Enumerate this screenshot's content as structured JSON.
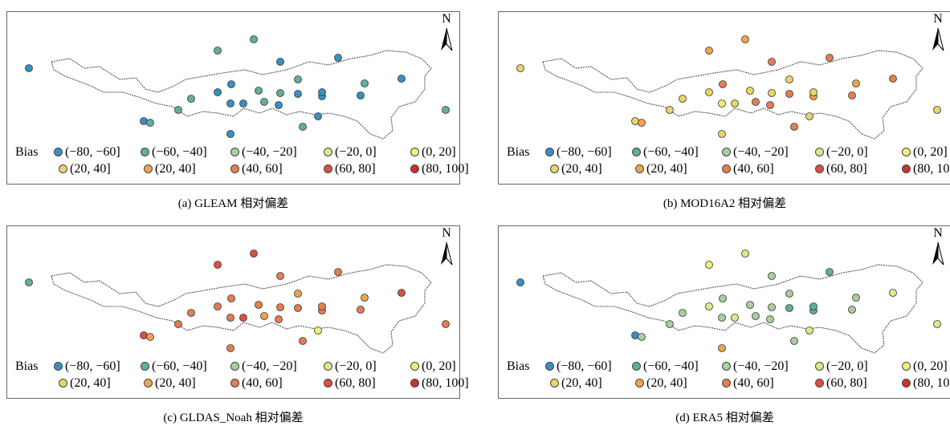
{
  "colors": {
    "(-80,-60]": "#3a8fc4",
    "(-60,-40]": "#63ad9e",
    "(-40,-20]": "#a9cf9a",
    "(-20,0]": "#dce98a",
    "(0,20]": "#f1ee7a",
    "(20,40]a": "#e9d46a",
    "(20,40]b": "#efa350",
    "(40,60]": "#e57d4f",
    "(60,80]": "#d95040",
    "(80,100]": "#c8322a"
  },
  "legend": {
    "title": "Bias",
    "row1": [
      {
        "label": "(−80, −60]",
        "color_key": "(-80,-60]"
      },
      {
        "label": "(−60, −40]",
        "color_key": "(-60,-40]"
      },
      {
        "label": "(−40, −20]",
        "color_key": "(-40,-20]"
      },
      {
        "label": "(−20, 0]",
        "color_key": "(-20,0]"
      },
      {
        "label": "(0, 20]",
        "color_key": "(0,20]"
      }
    ],
    "row2": [
      {
        "label": "(20, 40]",
        "color_key": "(20,40]a"
      },
      {
        "label": "(20, 40]",
        "color_key": "(20,40]b"
      },
      {
        "label": "(40, 60]",
        "color_key": "(40,60]"
      },
      {
        "label": "(60, 80]",
        "color_key": "(60,80]"
      },
      {
        "label": "(80, 100]",
        "color_key": "(80,100]"
      }
    ]
  },
  "north_label": "N",
  "panels": [
    {
      "caption": "(a) GLEAM 相对偏差",
      "stations": [
        "(-80,-60]",
        "(-60,-40]",
        "(-60,-40]",
        "(-80,-60]",
        "(-80,-60]",
        "(-80,-60]",
        "(-60,-40]",
        "(-80,-60]",
        "(-60,-40]",
        "(-60,-40]",
        "(-80,-60]",
        "(-80,-60]",
        "(-80,-60]",
        "(-80,-60]",
        "(-60,-40]",
        "(-60,-40]",
        "(-60,-40]",
        "(-80,-60]",
        "(-60,-40]",
        "(-80,-60]",
        "(-60,-40]",
        "(-80,-60]",
        "(-80,-60]",
        "(-60,-40]",
        "(-80,-60]",
        "(-80,-60]",
        "(-60,-40]",
        "(-80,-60]"
      ]
    },
    {
      "caption": "(b) MOD16A2 相对偏差",
      "stations": [
        "(20,40]a",
        "(20,40]b",
        "(20,40]b",
        "(40,60]",
        "(40,60]",
        "(40,60]",
        "(20,40]a",
        "(20,40]a",
        "(20,40]a",
        "(20,40]a",
        "(20,40]a",
        "(40,60]",
        "(0,20]",
        "(20,40]a",
        "(20,40]a",
        "(40,60]",
        "(20,40]a",
        "(40,60]",
        "(20,40]a",
        "(40,60]",
        "(40,60]",
        "(20,40]a",
        "(20,40]b",
        "(20,40]b",
        "(40,60]",
        "(20,40]a",
        "(20,40]b",
        "(20,40]a"
      ]
    },
    {
      "caption": "(c) GLDAS_Noah 相对偏差",
      "stations": [
        "(-60,-40]",
        "(60,80]",
        "(60,80]",
        "(40,60]",
        "(40,60]",
        "(60,80]",
        "(40,60]",
        "(60,80]",
        "(40,60]",
        "(40,60]",
        "(40,60]",
        "(40,60]",
        "(40,60]",
        "(60,80]",
        "(40,60]",
        "(20,40]b",
        "(40,60]",
        "(40,60]",
        "(20,40]b",
        "(40,60]",
        "(40,60]",
        "(0,20]",
        "(40,60]",
        "(20,40]b",
        "(40,60]",
        "(40,60]",
        "(20,40]b",
        "(40,60]"
      ]
    },
    {
      "caption": "(d) ERA5 相对偏差",
      "stations": [
        "(-80,-60]",
        "(0,20]",
        "(-20,0]",
        "(-40,-20]",
        "(-60,-40]",
        "(-20,0]",
        "(-20,0]",
        "(-80,-60]",
        "(-40,-20]",
        "(-40,-20]",
        "(-20,0]",
        "(-40,-20]",
        "(-40,-20]",
        "(-20,0]",
        "(-40,-20]",
        "(-40,-20]",
        "(-40,-20]",
        "(-40,-20]",
        "(-40,-20]",
        "(-60,-40]",
        "(-40,-20]",
        "(-20,0]",
        "(-60,-40]",
        "(-40,-20]",
        "(-40,-20]",
        "(20,40]b",
        "(-40,-20]",
        "(-60,-40]"
      ]
    }
  ]
}
